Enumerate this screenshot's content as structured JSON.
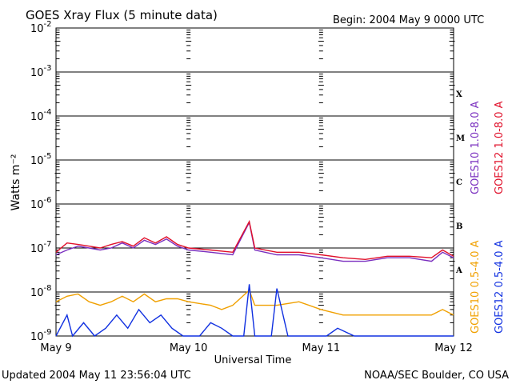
{
  "header": {
    "title": "GOES Xray Flux (5 minute data)",
    "begin": "Begin:  2004 May 9 0000 UTC"
  },
  "footer": {
    "updated": "Updated 2004 May 11 23:56:04 UTC",
    "credit": "NOAA/SEC Boulder, CO USA"
  },
  "chart_data": {
    "type": "line",
    "title": "GOES Xray Flux (5 minute data)",
    "xlabel": "Universal Time",
    "ylabel": "Watts m⁻²",
    "y_scale": "log",
    "ylim": [
      1e-09,
      0.01
    ],
    "xlim": [
      "2004-05-09T00:00",
      "2004-05-12T00:00"
    ],
    "x_ticks": [
      "May 9",
      "May 10",
      "May 11",
      "May 12"
    ],
    "y_ticks": [
      {
        "mantissa": "10",
        "exponent": "-9"
      },
      {
        "mantissa": "10",
        "exponent": "-8"
      },
      {
        "mantissa": "10",
        "exponent": "-7"
      },
      {
        "mantissa": "10",
        "exponent": "-6"
      },
      {
        "mantissa": "10",
        "exponent": "-5"
      },
      {
        "mantissa": "10",
        "exponent": "-4"
      },
      {
        "mantissa": "10",
        "exponent": "-3"
      },
      {
        "mantissa": "10",
        "exponent": "-2"
      }
    ],
    "flare_classes": [
      {
        "label": "X",
        "y": 0.00032
      },
      {
        "label": "M",
        "y": 3.2e-05
      },
      {
        "label": "C",
        "y": 3.2e-06
      },
      {
        "label": "B",
        "y": 3.2e-07
      },
      {
        "label": "A",
        "y": 3.2e-08
      }
    ],
    "grid": true,
    "legend_position": "right, vertical",
    "series": [
      {
        "name": "GOES10 1.0-8.0 A",
        "color": "#7a2fbf",
        "x": [
          "2004-05-09T00:00",
          "2004-05-09T02:00",
          "2004-05-09T04:00",
          "2004-05-09T06:00",
          "2004-05-09T08:00",
          "2004-05-09T10:00",
          "2004-05-09T12:00",
          "2004-05-09T14:00",
          "2004-05-09T16:00",
          "2004-05-09T18:00",
          "2004-05-09T20:00",
          "2004-05-09T22:00",
          "2004-05-10T00:00",
          "2004-05-10T04:00",
          "2004-05-10T08:00",
          "2004-05-10T11:00",
          "2004-05-10T12:00",
          "2004-05-10T16:00",
          "2004-05-10T20:00",
          "2004-05-11T00:00",
          "2004-05-11T04:00",
          "2004-05-11T08:00",
          "2004-05-11T12:00",
          "2004-05-11T16:00",
          "2004-05-11T20:00",
          "2004-05-11T22:00",
          "2004-05-12T00:00"
        ],
        "y": [
          7e-08,
          9e-08,
          1.1e-07,
          1e-07,
          9e-08,
          1e-07,
          1.3e-07,
          1e-07,
          1.5e-07,
          1.2e-07,
          1.6e-07,
          1.1e-07,
          9e-08,
          8e-08,
          7e-08,
          3.8e-07,
          9e-08,
          7e-08,
          7e-08,
          6e-08,
          5e-08,
          5e-08,
          6e-08,
          6e-08,
          5e-08,
          8e-08,
          6e-08
        ]
      },
      {
        "name": "GOES12 1.0-8.0 A",
        "color": "#e0102a",
        "x": [
          "2004-05-09T00:00",
          "2004-05-09T02:00",
          "2004-05-09T04:00",
          "2004-05-09T06:00",
          "2004-05-09T08:00",
          "2004-05-09T10:00",
          "2004-05-09T12:00",
          "2004-05-09T14:00",
          "2004-05-09T16:00",
          "2004-05-09T18:00",
          "2004-05-09T20:00",
          "2004-05-09T22:00",
          "2004-05-10T00:00",
          "2004-05-10T04:00",
          "2004-05-10T08:00",
          "2004-05-10T11:00",
          "2004-05-10T12:00",
          "2004-05-10T16:00",
          "2004-05-10T20:00",
          "2004-05-11T00:00",
          "2004-05-11T04:00",
          "2004-05-11T08:00",
          "2004-05-11T12:00",
          "2004-05-11T16:00",
          "2004-05-11T20:00",
          "2004-05-11T22:00",
          "2004-05-12T00:00"
        ],
        "y": [
          8e-08,
          1.3e-07,
          1.2e-07,
          1.1e-07,
          1e-07,
          1.2e-07,
          1.4e-07,
          1.1e-07,
          1.7e-07,
          1.3e-07,
          1.8e-07,
          1.2e-07,
          1e-07,
          9e-08,
          8e-08,
          4e-07,
          1e-07,
          8e-08,
          8e-08,
          7e-08,
          6e-08,
          5.5e-08,
          6.5e-08,
          6.5e-08,
          6e-08,
          9e-08,
          6.5e-08
        ]
      },
      {
        "name": "GOES10 0.5-4.0 A",
        "color": "#f0a000",
        "x": [
          "2004-05-09T00:00",
          "2004-05-09T02:00",
          "2004-05-09T04:00",
          "2004-05-09T06:00",
          "2004-05-09T08:00",
          "2004-05-09T10:00",
          "2004-05-09T12:00",
          "2004-05-09T14:00",
          "2004-05-09T16:00",
          "2004-05-09T18:00",
          "2004-05-09T20:00",
          "2004-05-09T22:00",
          "2004-05-10T00:00",
          "2004-05-10T04:00",
          "2004-05-10T06:00",
          "2004-05-10T08:00",
          "2004-05-10T11:00",
          "2004-05-10T12:00",
          "2004-05-10T16:00",
          "2004-05-10T20:00",
          "2004-05-11T00:00",
          "2004-05-11T04:00",
          "2004-05-11T08:00",
          "2004-05-11T12:00",
          "2004-05-11T16:00",
          "2004-05-11T20:00",
          "2004-05-11T22:00",
          "2004-05-12T00:00"
        ],
        "y": [
          6e-09,
          8e-09,
          9e-09,
          6e-09,
          5e-09,
          6e-09,
          8e-09,
          6e-09,
          9e-09,
          6e-09,
          7e-09,
          7e-09,
          6e-09,
          5e-09,
          4e-09,
          5e-09,
          1.1e-08,
          5e-09,
          5e-09,
          6e-09,
          4e-09,
          3e-09,
          3e-09,
          3e-09,
          3e-09,
          3e-09,
          4e-09,
          3e-09
        ]
      },
      {
        "name": "GOES12 0.5-4.0 A",
        "color": "#1030e0",
        "x": [
          "2004-05-09T00:00",
          "2004-05-09T02:00",
          "2004-05-09T03:00",
          "2004-05-09T05:00",
          "2004-05-09T07:00",
          "2004-05-09T09:00",
          "2004-05-09T11:00",
          "2004-05-09T13:00",
          "2004-05-09T15:00",
          "2004-05-09T17:00",
          "2004-05-09T19:00",
          "2004-05-09T21:00",
          "2004-05-09T23:00",
          "2004-05-10T02:00",
          "2004-05-10T04:00",
          "2004-05-10T06:00",
          "2004-05-10T08:00",
          "2004-05-10T10:00",
          "2004-05-10T11:00",
          "2004-05-10T12:00",
          "2004-05-10T15:00",
          "2004-05-10T16:00",
          "2004-05-10T18:00",
          "2004-05-10T20:00",
          "2004-05-10T23:00",
          "2004-05-11T01:00",
          "2004-05-11T03:00",
          "2004-05-11T06:00",
          "2004-05-12T00:00"
        ],
        "y": [
          1e-09,
          3e-09,
          1e-09,
          2e-09,
          1e-09,
          1.5e-09,
          3e-09,
          1.5e-09,
          4e-09,
          2e-09,
          3e-09,
          1.5e-09,
          1e-09,
          1e-09,
          2e-09,
          1.5e-09,
          1e-09,
          1e-09,
          1.5e-08,
          1e-09,
          1e-09,
          1.2e-08,
          1e-09,
          1e-09,
          1e-09,
          1e-09,
          1.5e-09,
          1e-09,
          1e-09
        ]
      }
    ]
  }
}
